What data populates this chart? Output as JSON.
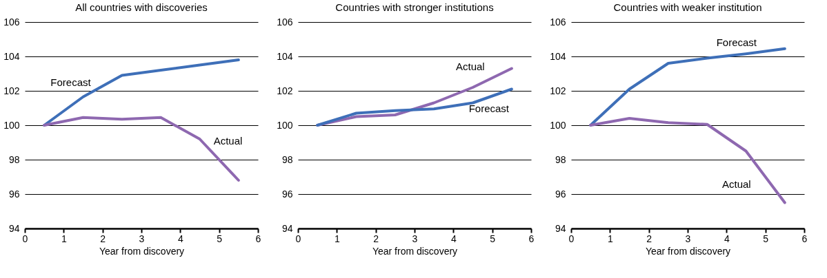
{
  "chart_data": [
    {
      "type": "line",
      "title": "All countries with discoveries",
      "xlabel": "Year from discovery",
      "x": [
        0.5,
        1.5,
        2.5,
        3.5,
        4.5,
        5.5
      ],
      "xlim": [
        0,
        6
      ],
      "ylim": [
        94,
        106
      ],
      "xticks": [
        0,
        1,
        2,
        3,
        4,
        5,
        6
      ],
      "yticks": [
        94,
        96,
        98,
        100,
        102,
        104,
        106
      ],
      "grid": "y",
      "series": [
        {
          "name": "Forecast",
          "color": "#3e6fb8",
          "values": [
            100,
            101.65,
            102.9,
            103.2,
            103.5,
            103.8
          ]
        },
        {
          "name": "Actual",
          "color": "#8e68b0",
          "values": [
            100,
            100.45,
            100.35,
            100.45,
            99.2,
            96.8
          ]
        }
      ]
    },
    {
      "type": "line",
      "title": "Countries with stronger institutions",
      "xlabel": "Year from discovery",
      "x": [
        0.5,
        1.5,
        2.5,
        3.5,
        4.5,
        5.5
      ],
      "xlim": [
        0,
        6
      ],
      "ylim": [
        94,
        106
      ],
      "xticks": [
        0,
        1,
        2,
        3,
        4,
        5,
        6
      ],
      "yticks": [
        94,
        96,
        98,
        100,
        102,
        104,
        106
      ],
      "grid": "y",
      "series": [
        {
          "name": "Actual",
          "color": "#8e68b0",
          "values": [
            100,
            100.5,
            100.6,
            101.3,
            102.2,
            103.3
          ]
        },
        {
          "name": "Forecast",
          "color": "#3e6fb8",
          "values": [
            100,
            100.7,
            100.85,
            100.95,
            101.3,
            102.1
          ]
        }
      ]
    },
    {
      "type": "line",
      "title": "Countries with weaker institution",
      "xlabel": "Year from discovery",
      "x": [
        0.5,
        1.5,
        2.5,
        3.5,
        4.5,
        5.5
      ],
      "xlim": [
        0,
        6
      ],
      "ylim": [
        94,
        106
      ],
      "xticks": [
        0,
        1,
        2,
        3,
        4,
        5,
        6
      ],
      "yticks": [
        94,
        96,
        98,
        100,
        102,
        104,
        106
      ],
      "grid": "y",
      "series": [
        {
          "name": "Forecast",
          "color": "#3e6fb8",
          "values": [
            100,
            102.1,
            103.6,
            103.9,
            104.15,
            104.45
          ]
        },
        {
          "name": "Actual",
          "color": "#8e68b0",
          "values": [
            100,
            100.4,
            100.15,
            100.05,
            98.5,
            95.5
          ]
        }
      ]
    }
  ]
}
